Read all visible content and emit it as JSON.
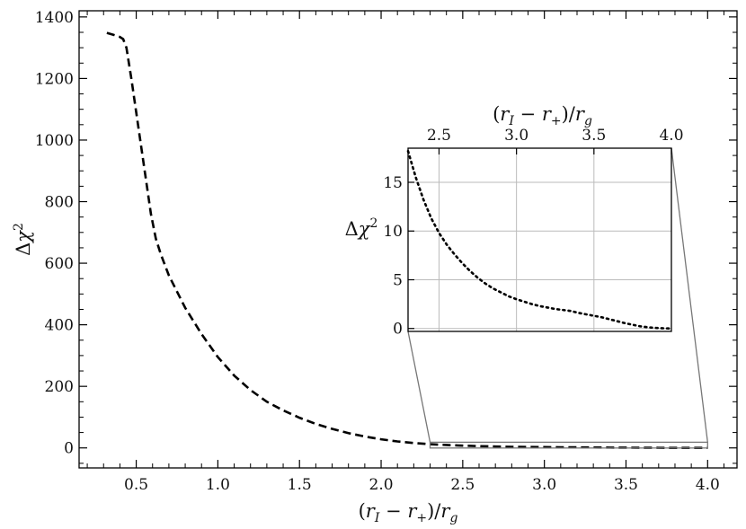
{
  "chart_data": [
    {
      "type": "line",
      "title": "",
      "xlabel": "(rI − r+)/rg",
      "ylabel": "Δχ²",
      "xlim": [
        0.15,
        4.18
      ],
      "ylim": [
        -65,
        1420
      ],
      "x_ticks": [
        0.5,
        1.0,
        1.5,
        2.0,
        2.5,
        3.0,
        3.5,
        4.0
      ],
      "x_tick_labels": [
        "0.5",
        "1.0",
        "1.5",
        "2.0",
        "2.5",
        "3.0",
        "3.5",
        "4.0"
      ],
      "y_ticks": [
        0,
        200,
        400,
        600,
        800,
        1000,
        1200,
        1400
      ],
      "y_tick_labels": [
        "0",
        "200",
        "400",
        "600",
        "800",
        "1000",
        "1200",
        "1400"
      ],
      "grid": false,
      "line_style": "dashed",
      "line_color": "#000000",
      "series": [
        {
          "x": [
            0.32,
            0.36,
            0.4,
            0.42,
            0.44,
            0.47,
            0.5,
            0.53,
            0.56,
            0.59,
            0.62,
            0.65,
            0.7,
            0.8,
            0.9,
            1.0,
            1.1,
            1.2,
            1.3,
            1.4,
            1.5,
            1.6,
            1.7,
            1.8,
            1.9,
            2.0,
            2.1,
            2.2,
            2.3,
            2.4,
            2.5,
            2.6,
            2.7,
            2.8,
            2.9,
            3.0,
            3.1,
            3.2,
            3.3,
            3.4,
            3.5,
            3.6,
            3.7,
            3.8,
            3.9,
            4.0
          ],
          "y": [
            1348,
            1342,
            1335,
            1328,
            1300,
            1200,
            1090,
            980,
            870,
            760,
            680,
            630,
            560,
            455,
            370,
            295,
            235,
            188,
            150,
            122,
            98,
            78,
            62,
            48,
            37,
            28,
            21,
            16,
            12,
            9.5,
            7.5,
            5.8,
            4.5,
            3.6,
            3.0,
            2.5,
            2.1,
            1.8,
            1.4,
            1.0,
            0.7,
            0.5,
            0.3,
            0.15,
            0.07,
            0.0
          ]
        }
      ]
    },
    {
      "type": "line",
      "title": "",
      "xlabel": "(rI − r+)/rg",
      "ylabel": "Δχ²",
      "xlim": [
        2.3,
        4.0
      ],
      "ylim": [
        -0.3,
        18.5
      ],
      "x_ticks": [
        2.5,
        3.0,
        3.5,
        4.0
      ],
      "x_tick_labels": [
        "2.5",
        "3.0",
        "3.5",
        "4.0"
      ],
      "y_ticks": [
        0,
        5,
        10,
        15
      ],
      "y_tick_labels": [
        "0",
        "5",
        "10",
        "15"
      ],
      "grid": true,
      "line_style": "dotted",
      "line_color": "#000000",
      "series": [
        {
          "x": [
            2.3,
            2.35,
            2.4,
            2.45,
            2.5,
            2.55,
            2.6,
            2.65,
            2.7,
            2.75,
            2.8,
            2.85,
            2.9,
            2.95,
            3.0,
            3.05,
            3.1,
            3.15,
            3.2,
            3.25,
            3.3,
            3.35,
            3.4,
            3.45,
            3.5,
            3.55,
            3.6,
            3.65,
            3.7,
            3.75,
            3.8,
            3.85,
            3.9,
            3.95,
            4.0
          ],
          "y": [
            18.2,
            15.5,
            13.2,
            11.3,
            9.8,
            8.6,
            7.6,
            6.7,
            5.9,
            5.2,
            4.6,
            4.1,
            3.7,
            3.3,
            3.0,
            2.75,
            2.5,
            2.3,
            2.15,
            2.0,
            1.9,
            1.8,
            1.6,
            1.45,
            1.3,
            1.15,
            0.95,
            0.75,
            0.55,
            0.38,
            0.22,
            0.12,
            0.06,
            0.02,
            0.0
          ]
        }
      ]
    }
  ]
}
